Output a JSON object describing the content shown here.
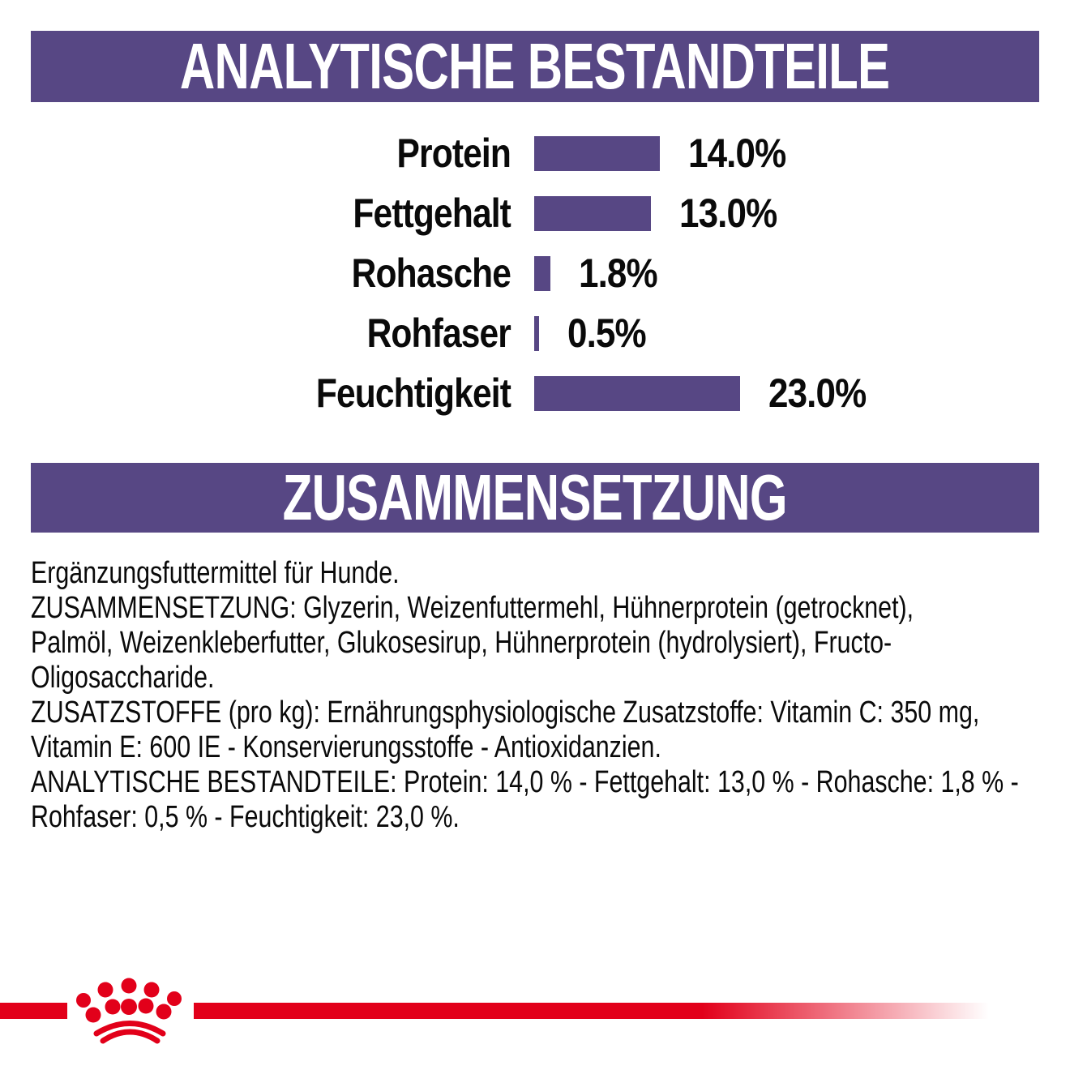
{
  "colors": {
    "purple": "#574784",
    "red": "#e2001a",
    "text": "#0a0a0a",
    "band_text": "#ffffff"
  },
  "sections": {
    "analytical": {
      "title": "ANALYTISCHE BESTANDTEILE"
    },
    "composition": {
      "title": "ZUSAMMENSETZUNG"
    }
  },
  "chart_data": {
    "type": "bar",
    "orientation": "horizontal",
    "title": "ANALYTISCHE BESTANDTEILE",
    "categories": [
      "Protein",
      "Fettgehalt",
      "Rohasche",
      "Rohfaser",
      "Feuchtigkeit"
    ],
    "values": [
      14.0,
      13.0,
      1.8,
      0.5,
      23.0
    ],
    "value_labels": [
      "14.0%",
      "13.0%",
      "1.8%",
      "0.5%",
      "23.0%"
    ],
    "unit": "%",
    "xlim": [
      0,
      25
    ],
    "bar_color": "#574784",
    "grid": false,
    "legend": false,
    "value_label_position": "right-of-bar"
  },
  "composition": {
    "paragraphs": [
      "Ergänzungsfuttermittel für Hunde.",
      "ZUSAMMENSETZUNG: Glyzerin, Weizenfuttermehl, Hühnerprotein (getrocknet),\nPalmöl, Weizenkleberfutter, Glukosesirup, Hühnerprotein (hydrolysiert), Fructo-\nOligosaccharide.",
      "ZUSATZSTOFFE (pro kg): Ernährungsphysiologische Zusatzstoffe: Vitamin C: 350 mg,\nVitamin E: 600 IE - Konservierungsstoffe - Antioxidanzien.",
      "ANALYTISCHE BESTANDTEILE: Protein: 14,0 % - Fettgehalt: 13,0 % - Rohasche: 1,8 % -\nRohfaser: 0,5 % - Feuchtigkeit: 23,0 %."
    ]
  }
}
